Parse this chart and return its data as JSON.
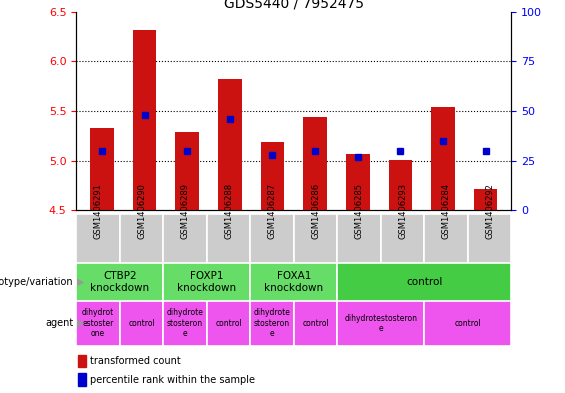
{
  "title": "GDS5440 / 7952475",
  "samples": [
    "GSM1406291",
    "GSM1406290",
    "GSM1406289",
    "GSM1406288",
    "GSM1406287",
    "GSM1406286",
    "GSM1406285",
    "GSM1406293",
    "GSM1406284",
    "GSM1406292"
  ],
  "transformed_count": [
    5.33,
    6.32,
    5.29,
    5.82,
    5.19,
    5.44,
    5.07,
    5.01,
    5.54,
    4.71
  ],
  "percentile_rank_pct": [
    30,
    48,
    30,
    46,
    28,
    30,
    27,
    30,
    35,
    30
  ],
  "bar_bottom": 4.5,
  "ylim_left": [
    4.5,
    6.5
  ],
  "ylim_right": [
    0,
    100
  ],
  "yticks_left": [
    4.5,
    5.0,
    5.5,
    6.0,
    6.5
  ],
  "yticks_right": [
    0,
    25,
    50,
    75,
    100
  ],
  "dotted_lines": [
    5.0,
    5.5,
    6.0
  ],
  "genotype_groups": [
    {
      "label": "CTBP2\nknockdown",
      "start": 0,
      "end": 2,
      "color": "#66DD66"
    },
    {
      "label": "FOXP1\nknockdown",
      "start": 2,
      "end": 4,
      "color": "#66DD66"
    },
    {
      "label": "FOXA1\nknockdown",
      "start": 4,
      "end": 6,
      "color": "#66DD66"
    },
    {
      "label": "control",
      "start": 6,
      "end": 10,
      "color": "#44CC44"
    }
  ],
  "agent_groups": [
    {
      "label": "dihydrot\nestoster\none",
      "start": 0,
      "end": 1,
      "color": "#EE55EE"
    },
    {
      "label": "control",
      "start": 1,
      "end": 2,
      "color": "#EE55EE"
    },
    {
      "label": "dihydrote\nstosteron\ne",
      "start": 2,
      "end": 3,
      "color": "#EE55EE"
    },
    {
      "label": "control",
      "start": 3,
      "end": 4,
      "color": "#EE55EE"
    },
    {
      "label": "dihydrote\nstosteron\ne",
      "start": 4,
      "end": 5,
      "color": "#EE55EE"
    },
    {
      "label": "control",
      "start": 5,
      "end": 6,
      "color": "#EE55EE"
    },
    {
      "label": "dihydrotestosteron\ne",
      "start": 6,
      "end": 8,
      "color": "#EE55EE"
    },
    {
      "label": "control",
      "start": 8,
      "end": 10,
      "color": "#EE55EE"
    }
  ],
  "bar_color": "#CC1111",
  "dot_color": "#0000CC",
  "dot_size": 4,
  "bar_width": 0.55,
  "plot_bg": "#FFFFFF",
  "tick_label_bg": "#CCCCCC",
  "left_label_color": "#999999"
}
